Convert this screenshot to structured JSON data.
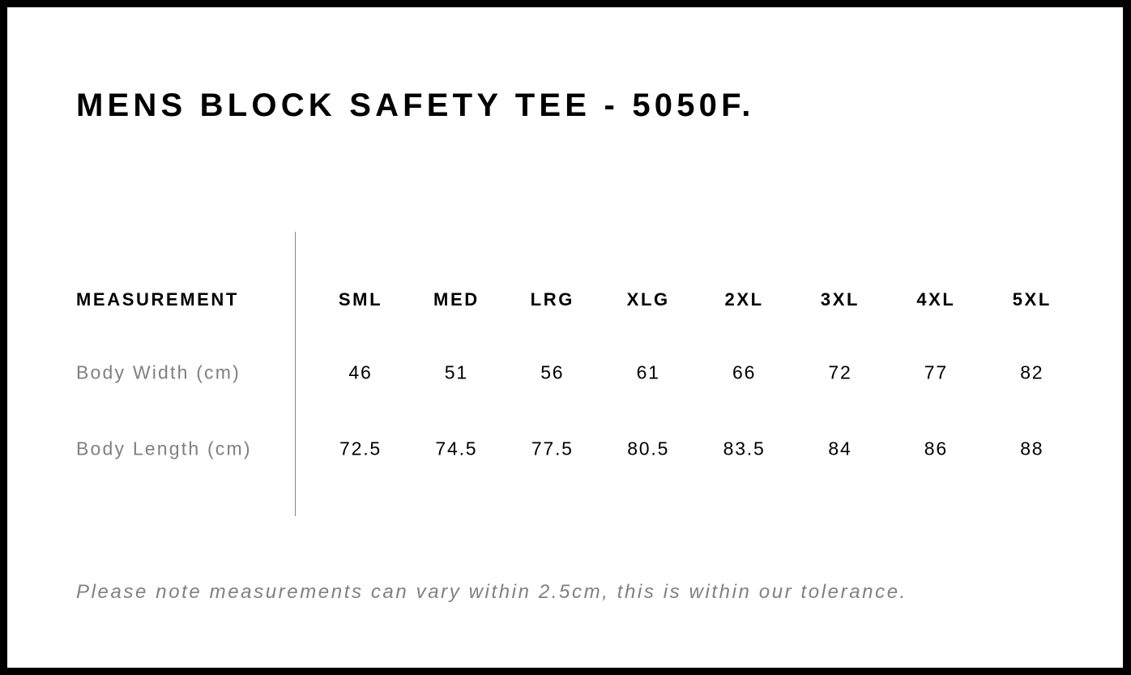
{
  "title": "MENS BLOCK SAFETY TEE - 5050F.",
  "table": {
    "header_label": "MEASUREMENT",
    "sizes": [
      "SML",
      "MED",
      "LRG",
      "XLG",
      "2XL",
      "3XL",
      "4XL",
      "5XL"
    ],
    "rows": [
      {
        "label": "Body Width (cm)",
        "values": [
          "46",
          "51",
          "56",
          "61",
          "66",
          "72",
          "77",
          "82"
        ]
      },
      {
        "label": "Body Length (cm)",
        "values": [
          "72.5",
          "74.5",
          "77.5",
          "80.5",
          "83.5",
          "84",
          "86",
          "88"
        ]
      }
    ]
  },
  "note": "Please note measurements can vary within 2.5cm, this is within our tolerance."
}
